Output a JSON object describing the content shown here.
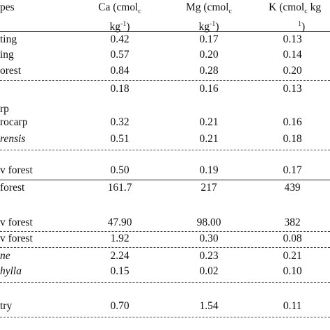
{
  "table": {
    "header": {
      "type": "pes",
      "ca": {
        "main": "Ca (cmol",
        "sub": "c",
        "line2": "kg",
        "sup": "-1",
        "end": ")"
      },
      "mg": {
        "main": "Mg (cmol",
        "sub": "c",
        "line2": "kg",
        "sup": "-1",
        "end": ")"
      },
      "k": {
        "main": "K (cmol",
        "sub": "c",
        "rest": " kg",
        "sup": "1",
        "end": ")"
      }
    },
    "rows": [
      {
        "label": "ting",
        "ca": "0.42",
        "mg": "0.17",
        "k": "0.13"
      },
      {
        "label": "ing",
        "ca": "0.57",
        "mg": "0.20",
        "k": "0.14"
      },
      {
        "label": "orest",
        "ca": "0.84",
        "mg": "0.28",
        "k": "0.20"
      },
      {
        "ca": "0.18",
        "mg": "0.16",
        "k": "0.13"
      },
      {
        "label": "rp"
      },
      {
        "label": "rocarp",
        "ca": "0.32",
        "mg": "0.21",
        "k": "0.16"
      },
      {
        "label": "rensis",
        "italic": true,
        "ca": "0.51",
        "mg": "0.21",
        "k": "0.18"
      },
      {
        "label": "v forest",
        "ca": "0.50",
        "mg": "0.19",
        "k": "0.17"
      },
      {
        "label": "forest",
        "ca": "161.7",
        "mg": "217",
        "k": "439"
      },
      {
        "label": "v forest",
        "ca": "47.90",
        "mg": "98.00",
        "k": "382"
      },
      {
        "label": "v forest",
        "ca": "1.92",
        "mg": "0.30",
        "k": "0.08"
      },
      {
        "label": "ne",
        "italic": true,
        "ca": "2.24",
        "mg": "0.23",
        "k": "0.21"
      },
      {
        "label": "hylla",
        "italic": true,
        "ca": "0.15",
        "mg": "0.02",
        "k": "0.10"
      },
      {
        "label": "try",
        "ca": "0.70",
        "mg": "1.54",
        "k": "0.11"
      }
    ]
  }
}
